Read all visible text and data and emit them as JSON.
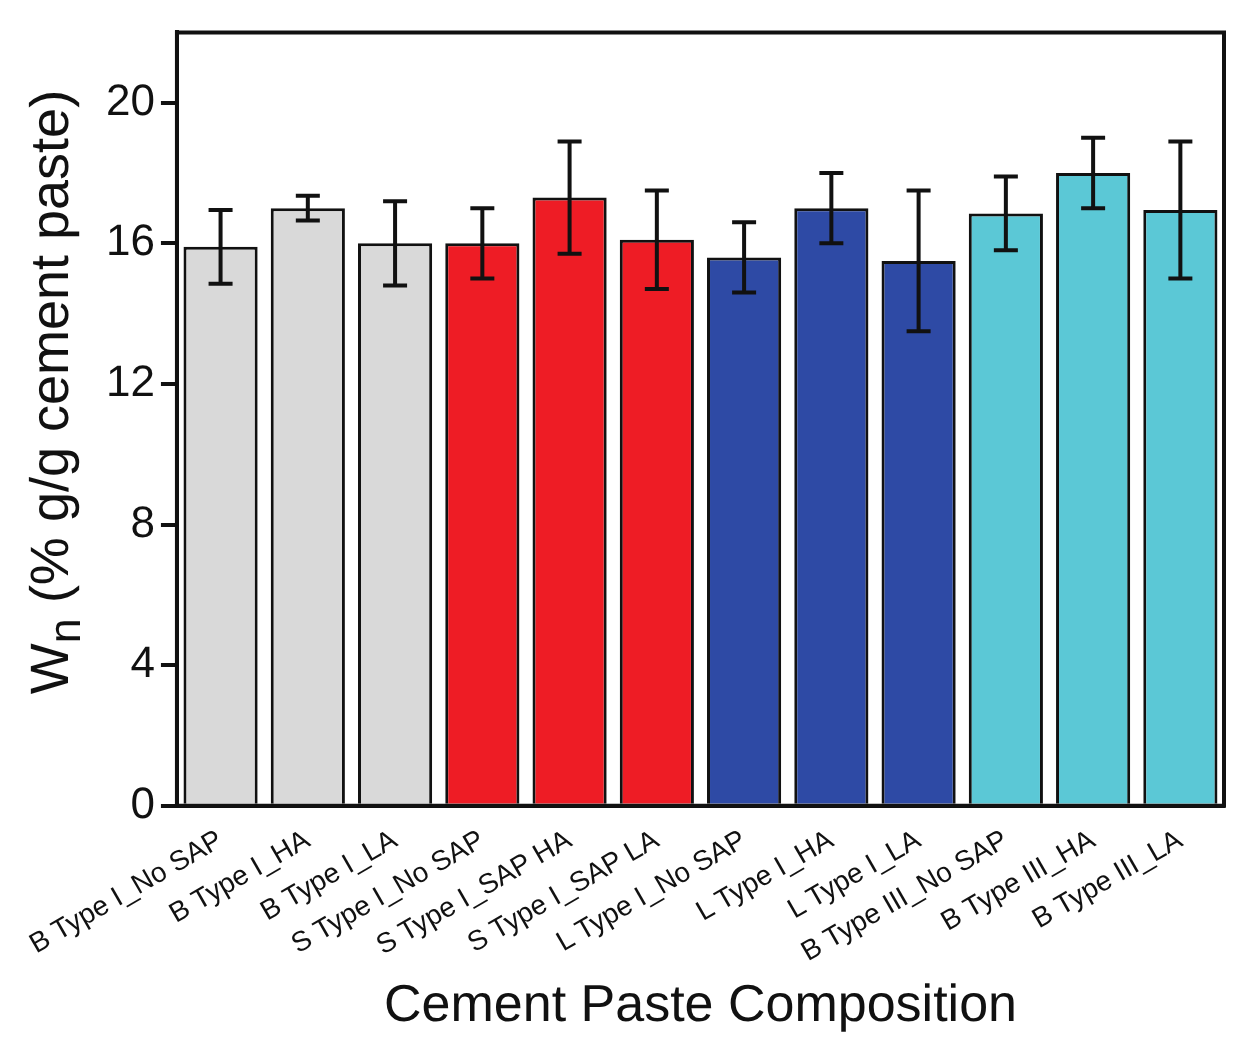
{
  "chart_data": {
    "type": "bar",
    "xlabel": "Cement Paste Composition",
    "ylabel": "W$_{n}$ (% g/g cement paste)",
    "categories": [
      "B Type I_No SAP",
      "B Type I_HA",
      "B Type I_LA",
      "S Type I_No SAP",
      "S Type I_SAP HA",
      "S Type I_SAP LA",
      "L Type I_No SAP",
      "L Type I_HA",
      "L Type I_LA",
      "B Type III_No SAP",
      "B Type III_HA",
      "B Type III_LA"
    ],
    "values": [
      15.9,
      17.0,
      16.0,
      16.0,
      17.3,
      16.1,
      15.6,
      17.0,
      15.5,
      16.85,
      18.0,
      16.95
    ],
    "errors": [
      1.05,
      0.35,
      1.2,
      1.0,
      1.6,
      1.4,
      1.0,
      1.0,
      2.0,
      1.05,
      1.0,
      1.95
    ],
    "colors": [
      "#d9d9d9",
      "#d9d9d9",
      "#d9d9d9",
      "#ee1c25",
      "#ee1c25",
      "#ee1c25",
      "#2e4aa5",
      "#2e4aa5",
      "#2e4aa5",
      "#5bc8d6",
      "#5bc8d6",
      "#5bc8d6"
    ],
    "ylim": [
      0,
      22
    ],
    "yticks": [
      0,
      4,
      8,
      12,
      16,
      20
    ],
    "grid": false,
    "legend": false
  }
}
